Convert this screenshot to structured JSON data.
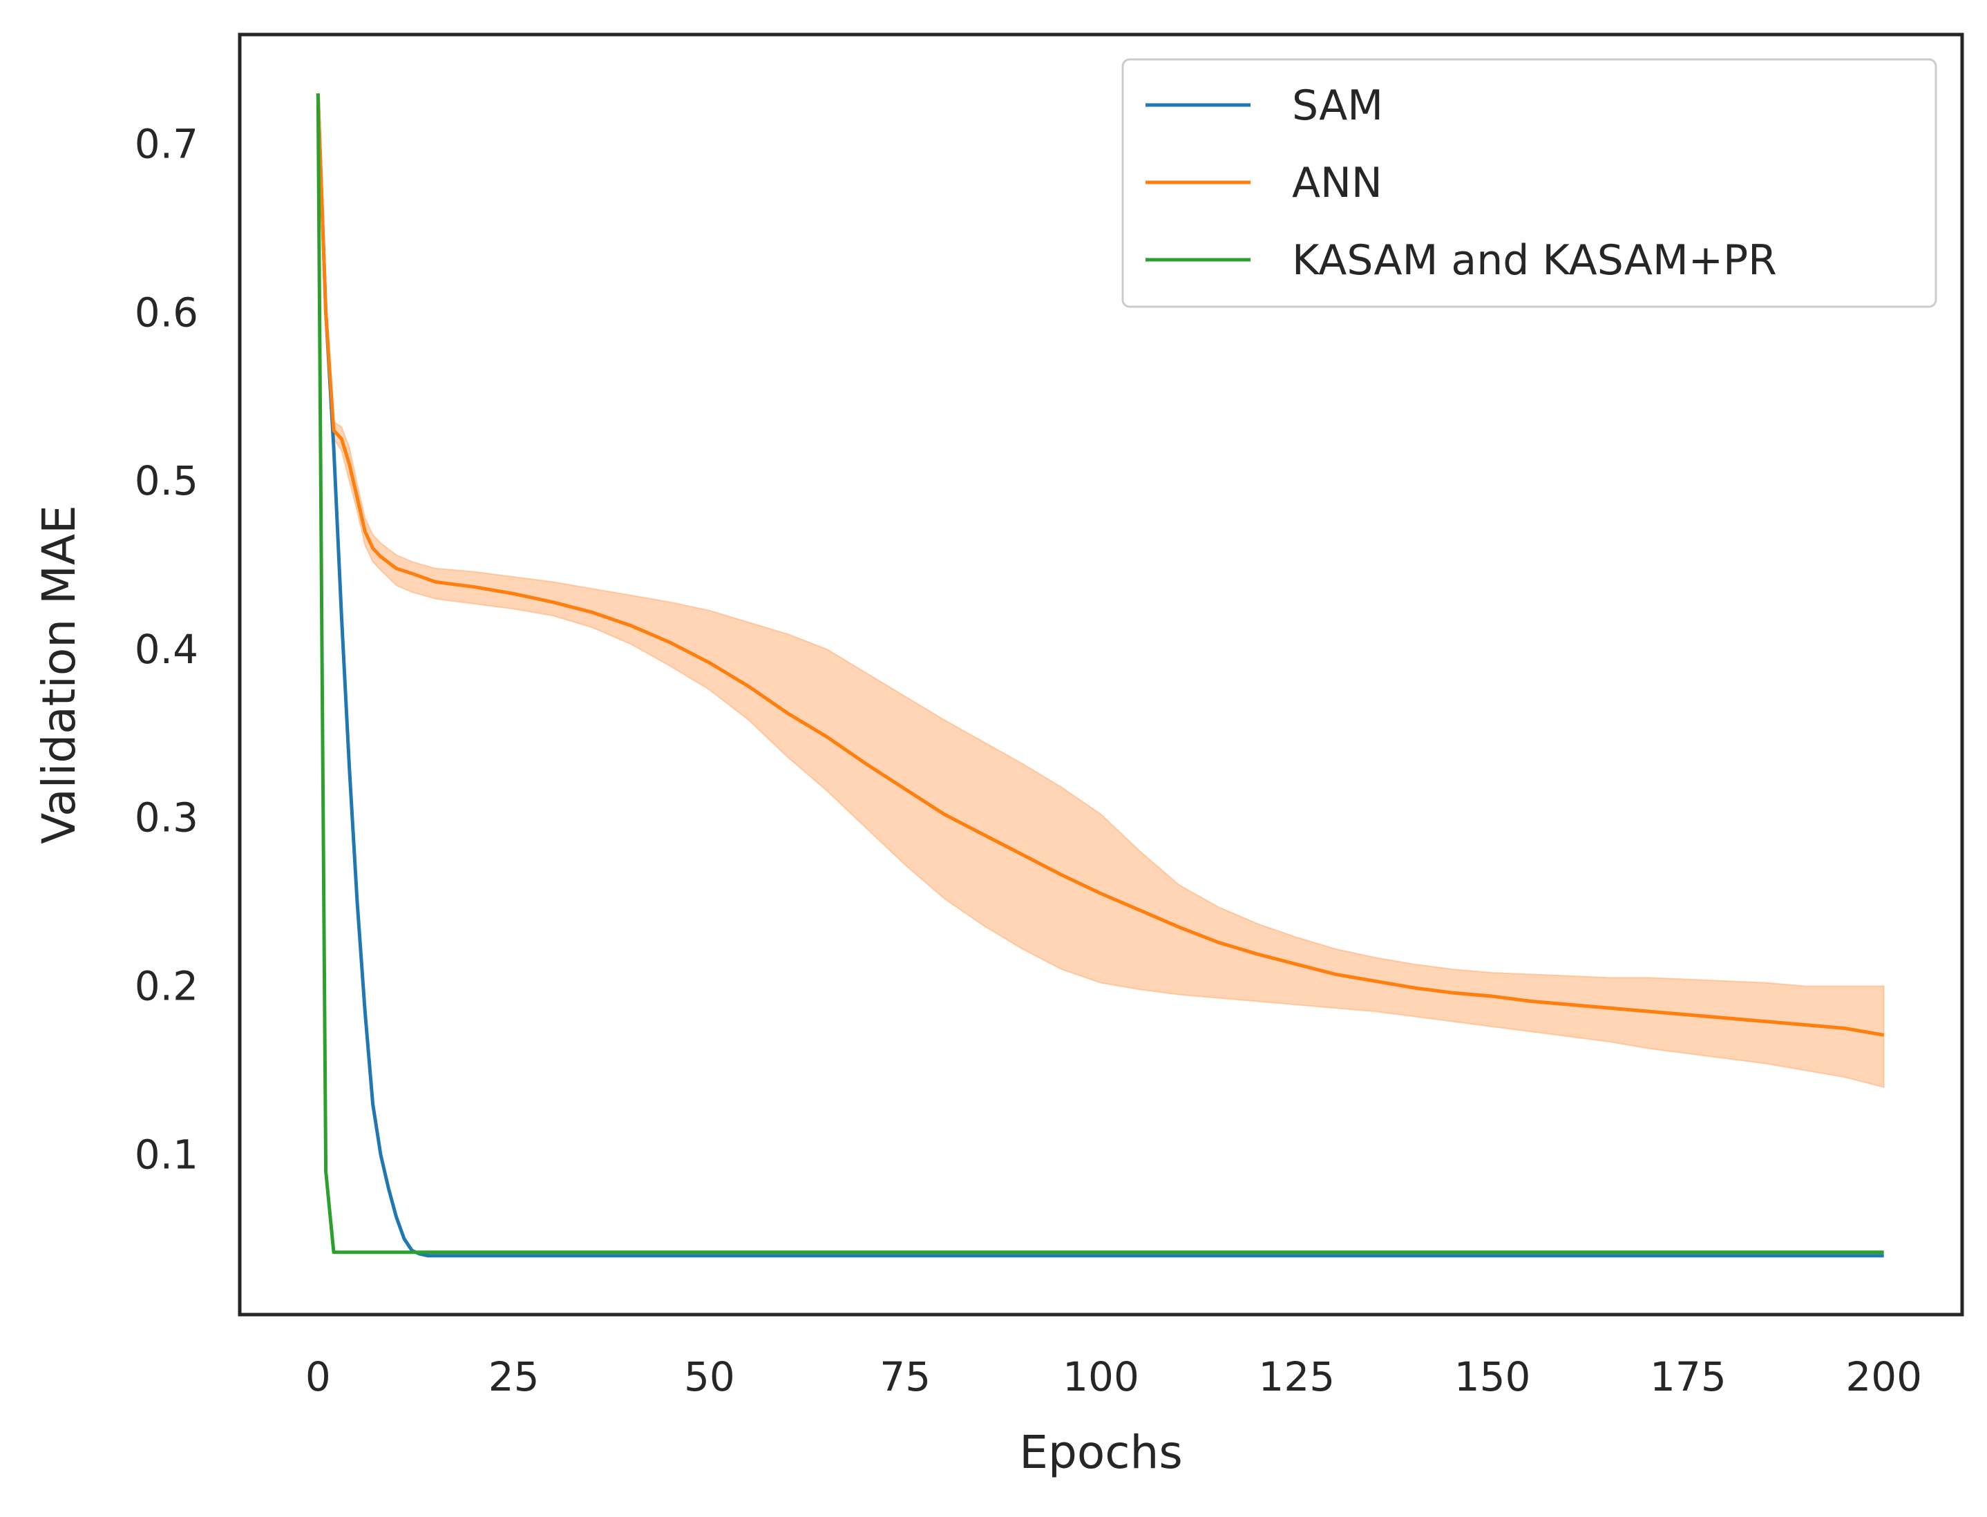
{
  "chart_data": {
    "type": "line",
    "title": "",
    "xlabel": "Epochs",
    "ylabel": "Validation MAE",
    "xlim": [
      -10,
      210
    ],
    "ylim": [
      0.005,
      0.765
    ],
    "xticks": [
      0,
      25,
      50,
      75,
      100,
      125,
      150,
      175,
      200
    ],
    "yticks": [
      0.1,
      0.2,
      0.3,
      0.4,
      0.5,
      0.6,
      0.7
    ],
    "xtick_labels": [
      "0",
      "25",
      "50",
      "75",
      "100",
      "125",
      "150",
      "175",
      "200"
    ],
    "ytick_labels": [
      "0.1",
      "0.2",
      "0.3",
      "0.4",
      "0.5",
      "0.6",
      "0.7"
    ],
    "grid": false,
    "legend_position": "top-right",
    "series": [
      {
        "name": "SAM",
        "color": "#1f77b4",
        "x": [
          0,
          1,
          2,
          3,
          4,
          5,
          6,
          7,
          8,
          9,
          10,
          11,
          12,
          13,
          14,
          20,
          50,
          100,
          150,
          200
        ],
        "y": [
          0.73,
          0.6,
          0.52,
          0.42,
          0.33,
          0.25,
          0.185,
          0.13,
          0.1,
          0.08,
          0.063,
          0.05,
          0.043,
          0.041,
          0.04,
          0.04,
          0.04,
          0.04,
          0.04,
          0.04
        ]
      },
      {
        "name": "ANN",
        "color": "#ff7f0e",
        "band_color": "#ffb27a",
        "x": [
          0,
          1,
          2,
          3,
          4,
          5,
          6,
          7,
          8,
          10,
          12,
          15,
          20,
          25,
          30,
          35,
          40,
          45,
          50,
          55,
          60,
          65,
          70,
          75,
          80,
          85,
          90,
          95,
          100,
          105,
          110,
          115,
          120,
          125,
          130,
          135,
          140,
          145,
          150,
          155,
          160,
          165,
          170,
          175,
          180,
          185,
          190,
          195,
          200
        ],
        "y": [
          0.73,
          0.6,
          0.53,
          0.525,
          0.51,
          0.49,
          0.47,
          0.46,
          0.455,
          0.448,
          0.445,
          0.44,
          0.437,
          0.433,
          0.428,
          0.422,
          0.414,
          0.404,
          0.392,
          0.378,
          0.362,
          0.348,
          0.332,
          0.317,
          0.302,
          0.29,
          0.278,
          0.266,
          0.255,
          0.245,
          0.235,
          0.226,
          0.219,
          0.213,
          0.207,
          0.203,
          0.199,
          0.196,
          0.194,
          0.191,
          0.189,
          0.187,
          0.185,
          0.183,
          0.181,
          0.179,
          0.177,
          0.175,
          0.171
        ],
        "lower": [
          0.73,
          0.59,
          0.525,
          0.518,
          0.5,
          0.482,
          0.462,
          0.452,
          0.447,
          0.438,
          0.434,
          0.43,
          0.427,
          0.424,
          0.42,
          0.413,
          0.403,
          0.39,
          0.376,
          0.358,
          0.336,
          0.316,
          0.294,
          0.272,
          0.252,
          0.236,
          0.222,
          0.21,
          0.202,
          0.198,
          0.195,
          0.193,
          0.191,
          0.189,
          0.187,
          0.185,
          0.182,
          0.179,
          0.176,
          0.173,
          0.17,
          0.167,
          0.163,
          0.16,
          0.157,
          0.154,
          0.15,
          0.146,
          0.14
        ],
        "upper": [
          0.73,
          0.61,
          0.535,
          0.532,
          0.52,
          0.498,
          0.478,
          0.468,
          0.463,
          0.456,
          0.452,
          0.448,
          0.446,
          0.443,
          0.44,
          0.436,
          0.432,
          0.428,
          0.423,
          0.416,
          0.409,
          0.4,
          0.386,
          0.372,
          0.358,
          0.345,
          0.332,
          0.318,
          0.302,
          0.28,
          0.26,
          0.247,
          0.237,
          0.229,
          0.222,
          0.217,
          0.213,
          0.21,
          0.208,
          0.207,
          0.206,
          0.205,
          0.205,
          0.204,
          0.203,
          0.202,
          0.2,
          0.2,
          0.2
        ]
      },
      {
        "name": "KASAM and KASAM+PR",
        "color": "#2ca02c",
        "x": [
          0,
          0.5,
          1,
          2,
          3,
          5,
          10,
          50,
          100,
          150,
          200
        ],
        "y": [
          0.73,
          0.4,
          0.09,
          0.042,
          0.042,
          0.042,
          0.042,
          0.042,
          0.042,
          0.042,
          0.042
        ]
      }
    ]
  }
}
